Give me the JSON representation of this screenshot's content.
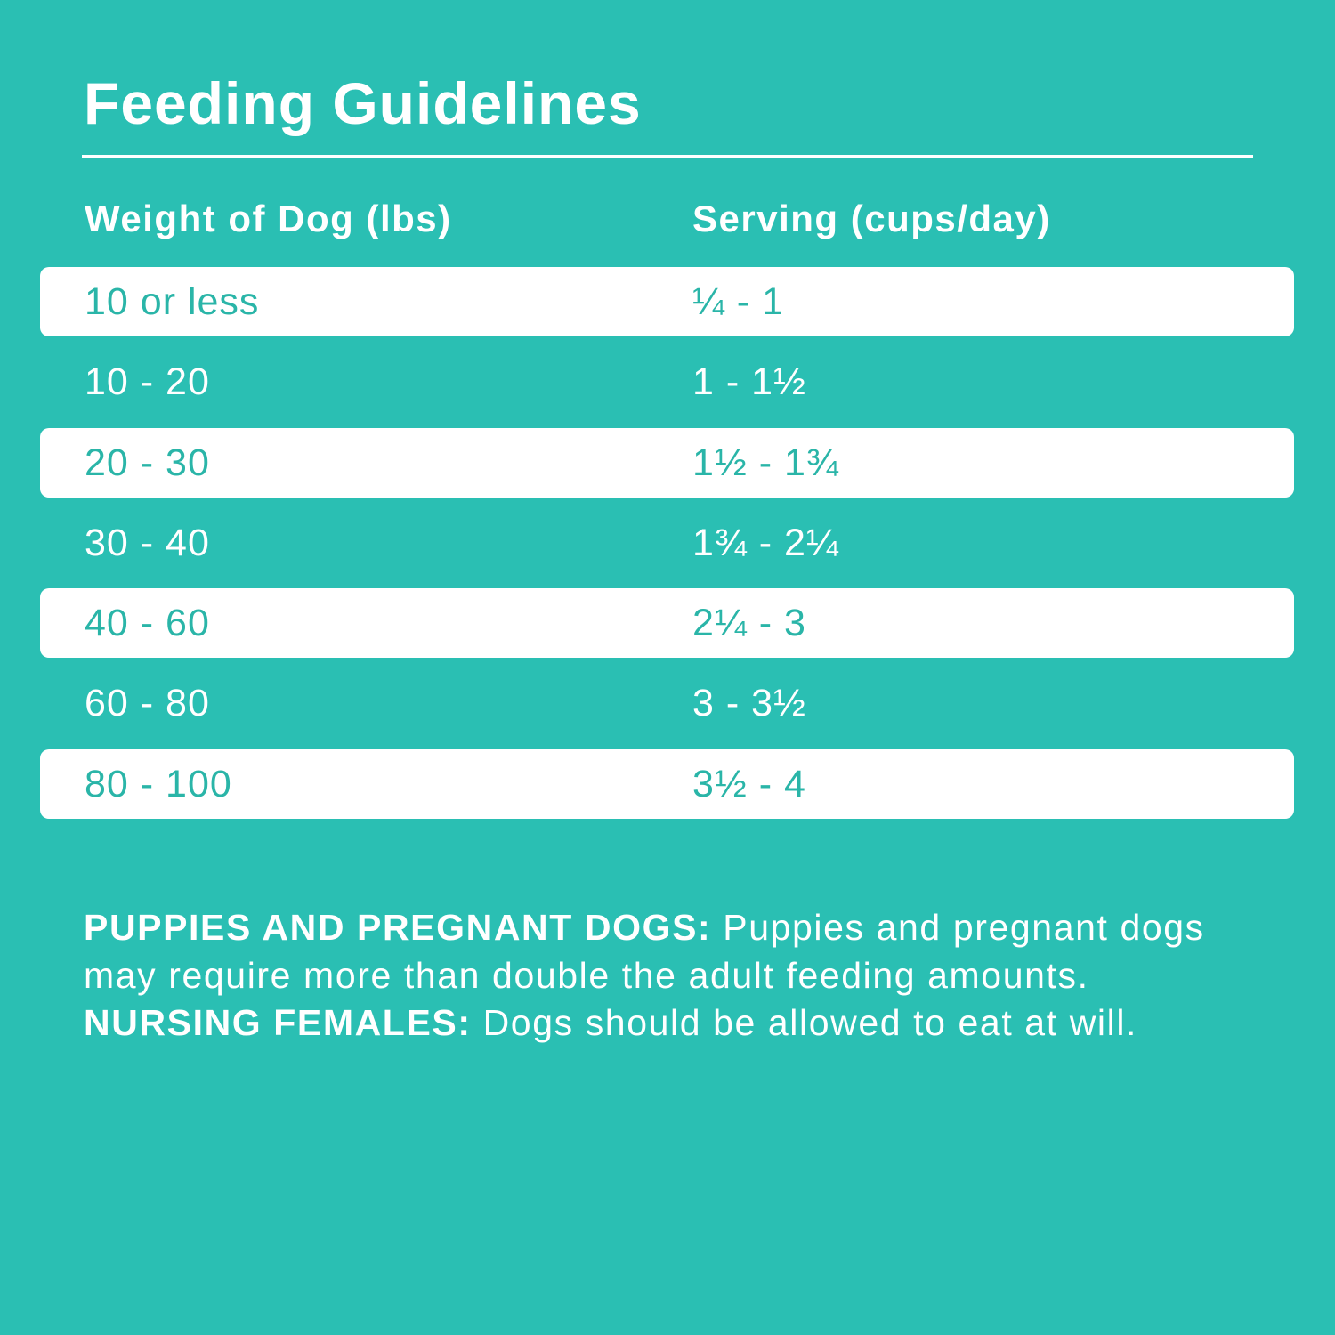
{
  "title": "Feeding Guidelines",
  "table": {
    "headers": [
      "Weight of Dog (lbs)",
      "Serving (cups/day)"
    ],
    "rows": [
      {
        "weight": "10 or less",
        "serving": "¼ - 1"
      },
      {
        "weight": "10 - 20",
        "serving": "1 - 1½"
      },
      {
        "weight": "20 - 30",
        "serving": "1½ - 1¾"
      },
      {
        "weight": "30 - 40",
        "serving": "1¾ - 2¼"
      },
      {
        "weight": "40 - 60",
        "serving": "2¼ - 3"
      },
      {
        "weight": "60 - 80",
        "serving": "3 - 3½"
      },
      {
        "weight": "80 - 100",
        "serving": "3½ - 4"
      }
    ]
  },
  "note": {
    "label1": "PUPPIES AND PREGNANT DOGS:",
    "text1": " Puppies and pregnant dogs may require more than double the adult feeding amounts. ",
    "label2": "NURSING FEMALES:",
    "text2": " Dogs should be allowed to eat at will."
  },
  "colors": {
    "background": "#2abfb3",
    "row_text": "#2ab5a8",
    "highlight_row": "#ffffff"
  }
}
